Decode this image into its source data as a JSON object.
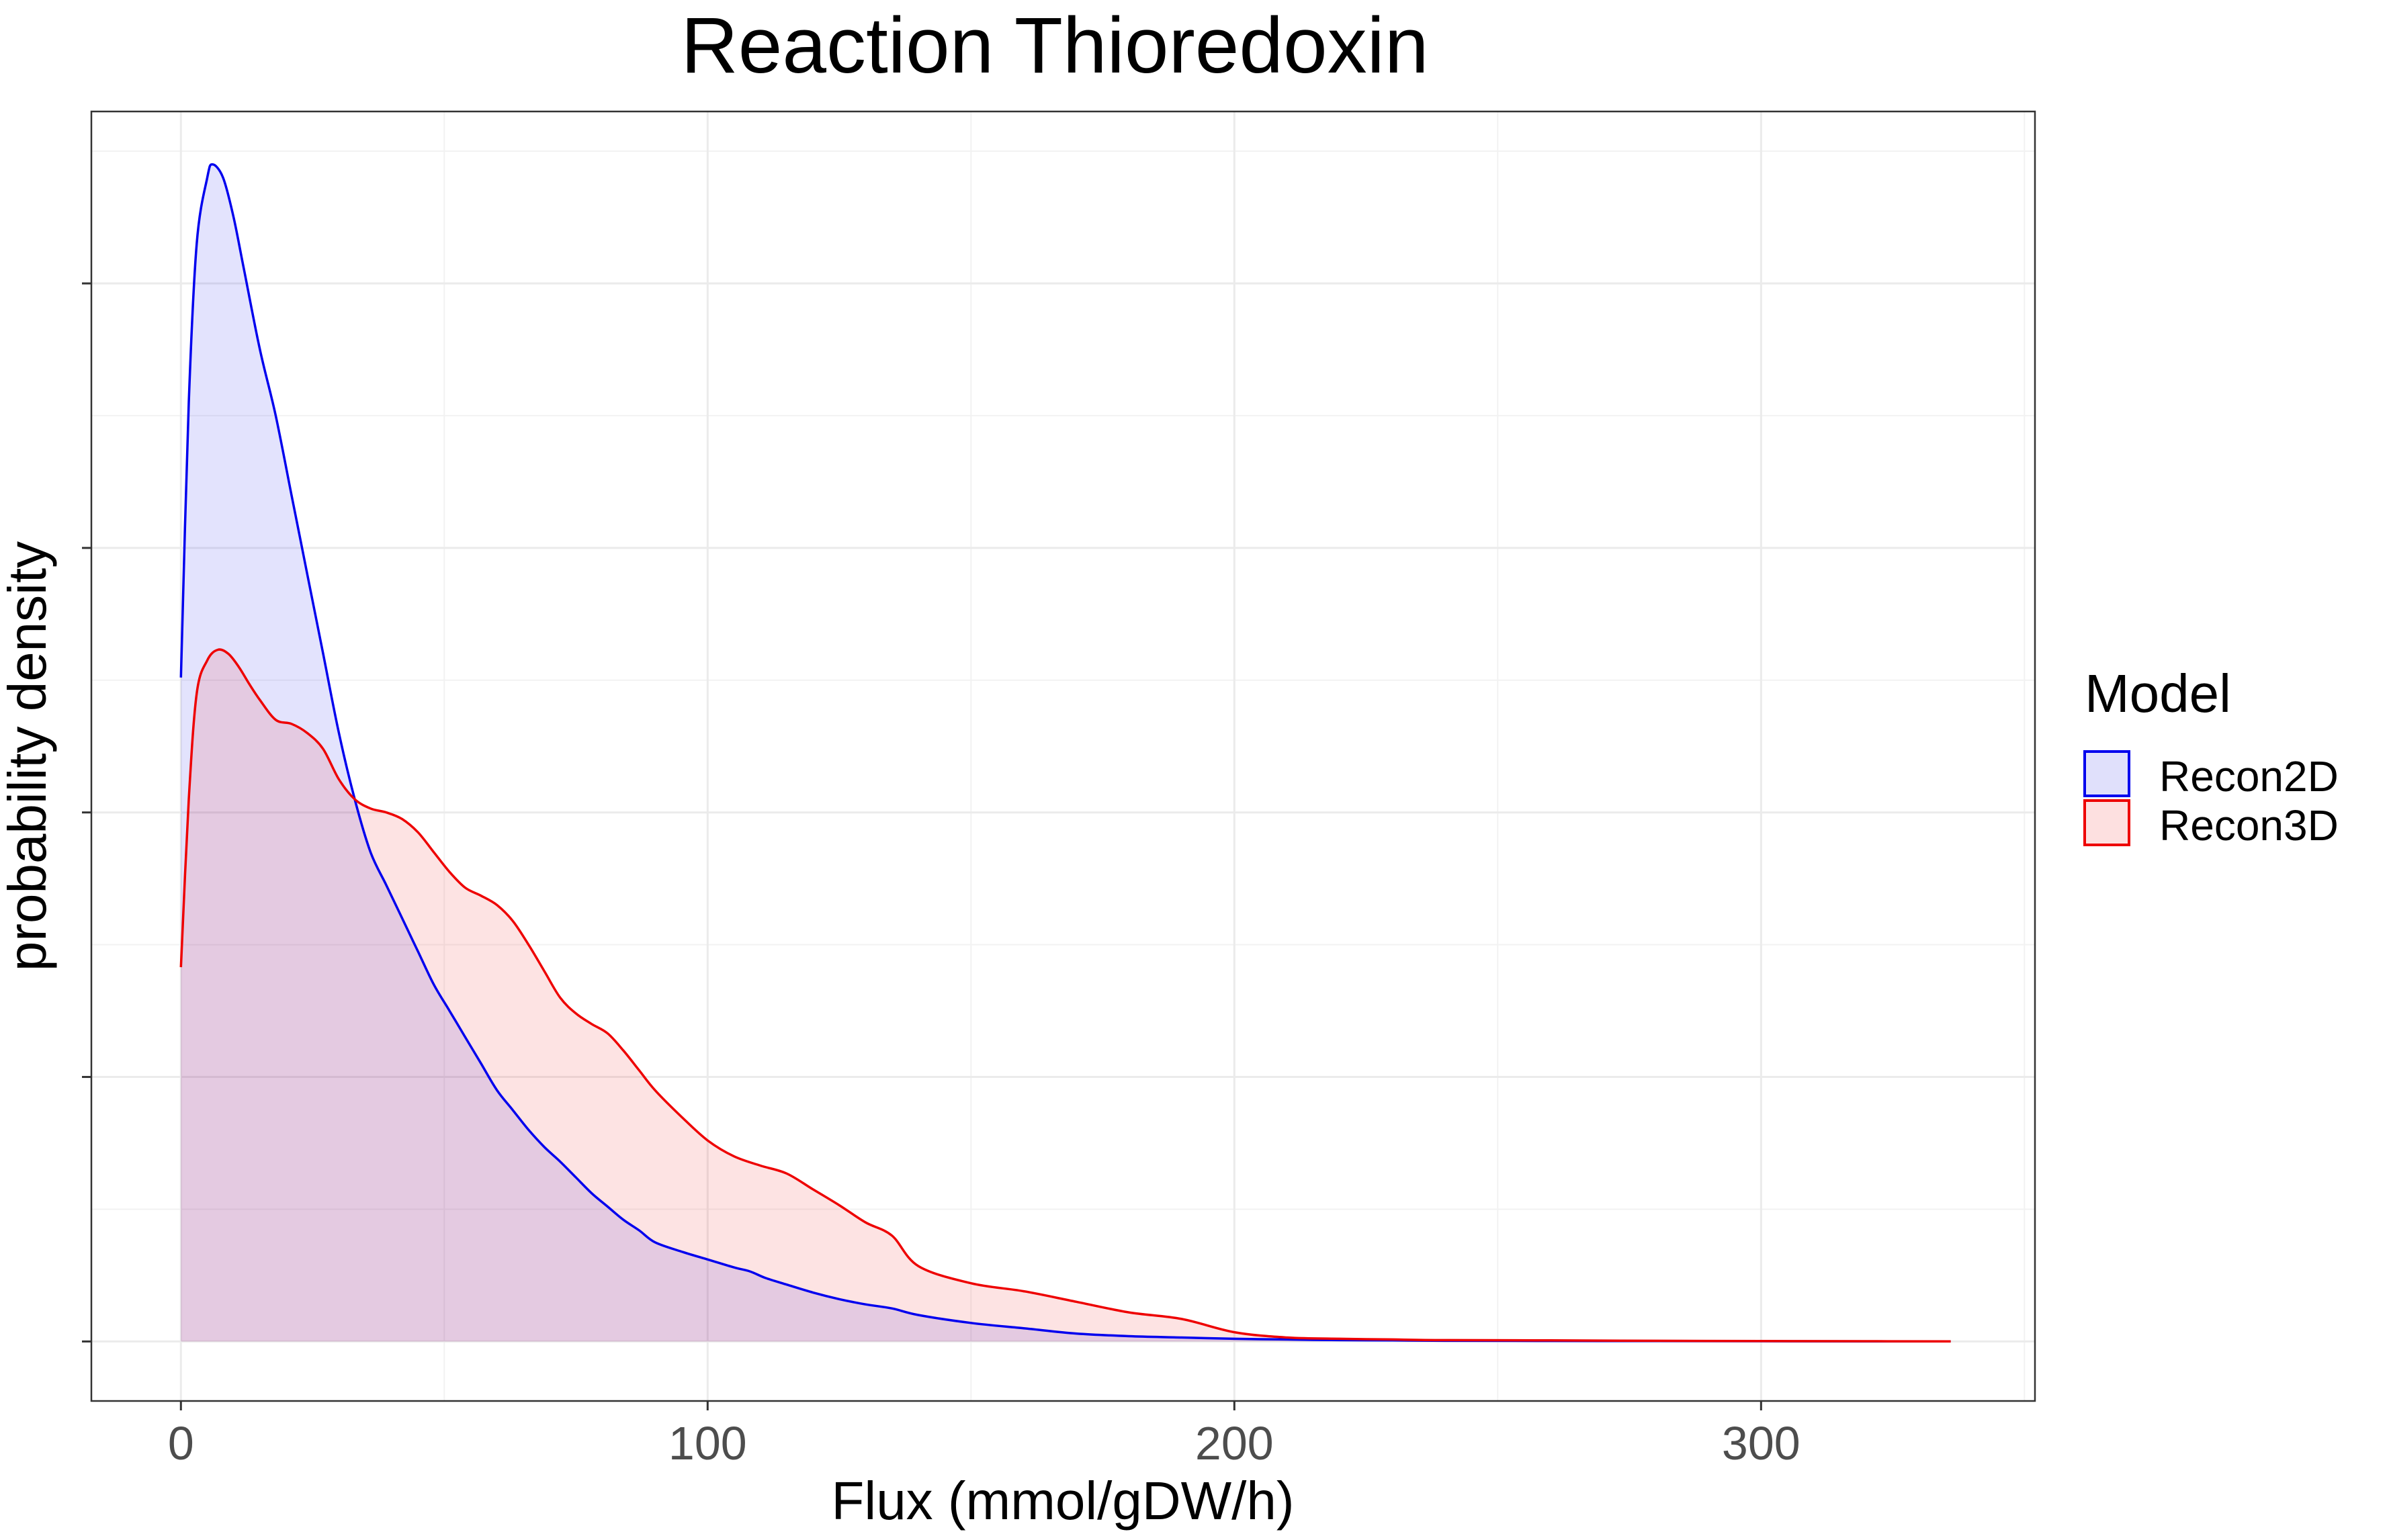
{
  "chart_data": {
    "type": "area",
    "title": "Reaction Thioredoxin",
    "xlabel": "Flux (mmol/gDW/h)",
    "ylabel": "probability density",
    "xlim": [
      -17,
      352
    ],
    "ylim": [
      -0.00045,
      0.0093
    ],
    "x_ticks": [
      0,
      100,
      200,
      300
    ],
    "x_tick_labels": [
      "0",
      "100",
      "200",
      "300"
    ],
    "y_ticks": [
      0,
      0.002,
      0.004,
      0.006,
      0.008
    ],
    "y_tick_labels": [
      "",
      "",
      "",
      "",
      ""
    ],
    "grid": true,
    "legend": {
      "title": "Model",
      "position": "right"
    },
    "series": [
      {
        "name": "Recon2D",
        "line_color": "#0000ee",
        "fill_color": "#e0e0fb",
        "x": [
          0,
          1.5,
          3,
          5,
          6,
          8,
          10,
          12,
          15,
          18,
          21,
          24,
          27,
          30,
          33,
          36,
          39,
          42,
          45,
          48,
          51,
          54,
          57,
          60,
          63,
          66,
          69,
          72,
          75,
          78,
          81,
          84,
          87,
          90,
          95,
          100,
          105,
          108,
          111,
          115,
          120,
          125,
          130,
          135,
          140,
          150,
          160,
          170,
          180,
          190,
          200,
          210,
          220,
          230,
          240,
          260,
          280,
          300,
          320,
          336
        ],
        "y": [
          0.00502,
          0.0071,
          0.0083,
          0.0088,
          0.0089,
          0.0088,
          0.0085,
          0.0081,
          0.0075,
          0.007,
          0.0064,
          0.0058,
          0.0052,
          0.0046,
          0.0041,
          0.0037,
          0.00345,
          0.0032,
          0.00295,
          0.0027,
          0.0025,
          0.0023,
          0.0021,
          0.0019,
          0.00175,
          0.0016,
          0.00147,
          0.00136,
          0.00124,
          0.00112,
          0.00102,
          0.00092,
          0.00084,
          0.00075,
          0.00068,
          0.00062,
          0.00056,
          0.00053,
          0.00048,
          0.00043,
          0.00037,
          0.00032,
          0.00028,
          0.00025,
          0.0002,
          0.00014,
          0.0001,
          6e-05,
          4e-05,
          3e-05,
          2e-05,
          1.5e-05,
          1e-05,
          8e-06,
          5e-06,
          4e-06,
          3e-06,
          2e-06,
          1e-06,
          1e-06
        ]
      },
      {
        "name": "Recon3D",
        "line_color": "#ee0000",
        "fill_color": "#fde0e0",
        "x": [
          0,
          1.5,
          3,
          5,
          7,
          9,
          11,
          13,
          15,
          18,
          21,
          24,
          27,
          30,
          33,
          36,
          39,
          42,
          45,
          48,
          51,
          54,
          57,
          60,
          63,
          66,
          69,
          72,
          75,
          78,
          81,
          84,
          87,
          90,
          95,
          100,
          105,
          110,
          115,
          120,
          125,
          130,
          135,
          140,
          150,
          160,
          170,
          180,
          190,
          200,
          210,
          220,
          230,
          240,
          260,
          280,
          300,
          320,
          336
        ],
        "y": [
          0.00283,
          0.0041,
          0.0049,
          0.00515,
          0.00523,
          0.0052,
          0.0051,
          0.00497,
          0.00485,
          0.0047,
          0.00467,
          0.0046,
          0.00448,
          0.00425,
          0.0041,
          0.00403,
          0.004,
          0.00395,
          0.00385,
          0.0037,
          0.00355,
          0.00343,
          0.00337,
          0.0033,
          0.00318,
          0.003,
          0.0028,
          0.0026,
          0.00248,
          0.0024,
          0.00233,
          0.0022,
          0.00205,
          0.0019,
          0.0017,
          0.00152,
          0.0014,
          0.00133,
          0.00127,
          0.00115,
          0.00103,
          0.0009,
          0.0008,
          0.00057,
          0.00044,
          0.00038,
          0.0003,
          0.00022,
          0.00017,
          7e-05,
          3e-05,
          2e-05,
          1.5e-05,
          1e-05,
          8e-06,
          5e-06,
          3e-06,
          2e-06,
          1e-06
        ]
      }
    ]
  }
}
